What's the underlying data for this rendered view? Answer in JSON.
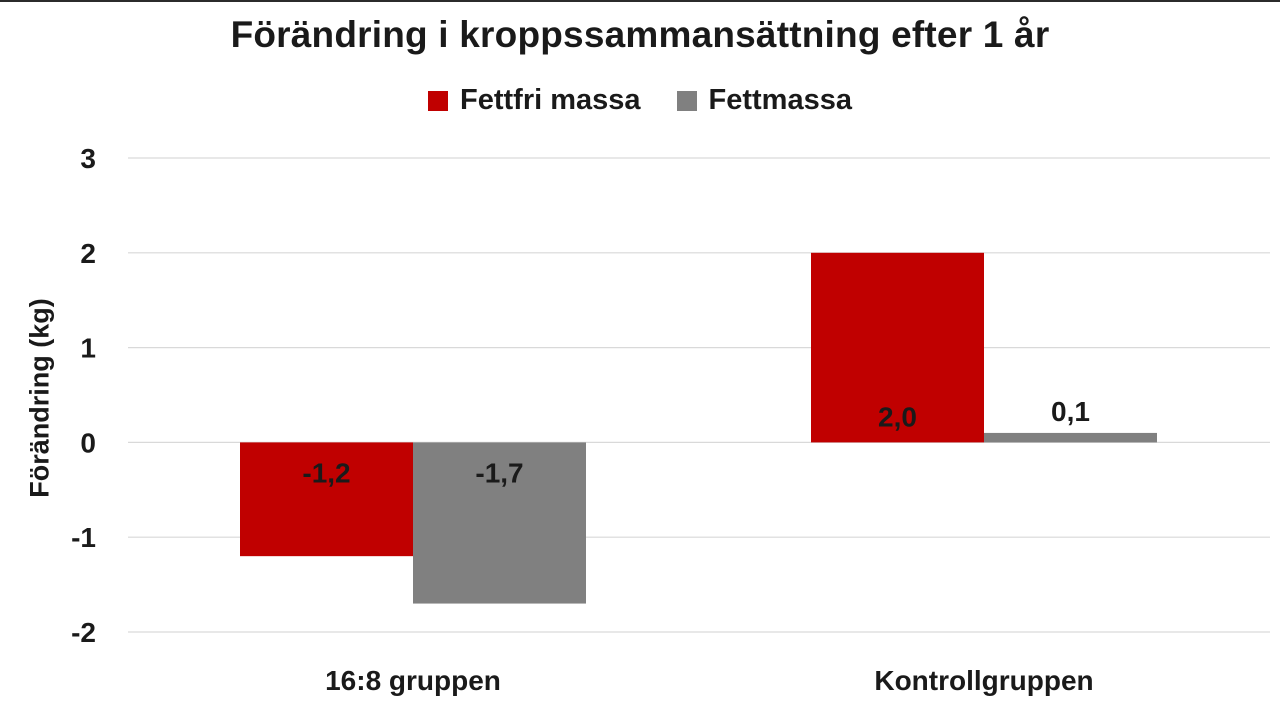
{
  "chart_data": {
    "type": "bar",
    "title": "Förändring i kroppssammansättning efter 1 år",
    "ylabel": "Förändring (kg)",
    "xlabel": "",
    "categories": [
      "16:8 gruppen",
      "Kontrollgruppen"
    ],
    "series": [
      {
        "name": "Fettfri massa",
        "values": [
          -1.2,
          2.0
        ],
        "labels": [
          "-1,2",
          "2,0"
        ],
        "color": "#c00000"
      },
      {
        "name": "Fettmassa",
        "values": [
          -1.7,
          0.1
        ],
        "labels": [
          "-1,7",
          "0,1"
        ],
        "color": "#808080"
      }
    ],
    "ylim": [
      -2,
      3
    ],
    "yticks": [
      3,
      2,
      1,
      0,
      -1,
      -2
    ],
    "ytick_labels": [
      "3",
      "2",
      "1",
      "0",
      "-1",
      "-2"
    ],
    "grid": true,
    "legend": "top-center"
  }
}
